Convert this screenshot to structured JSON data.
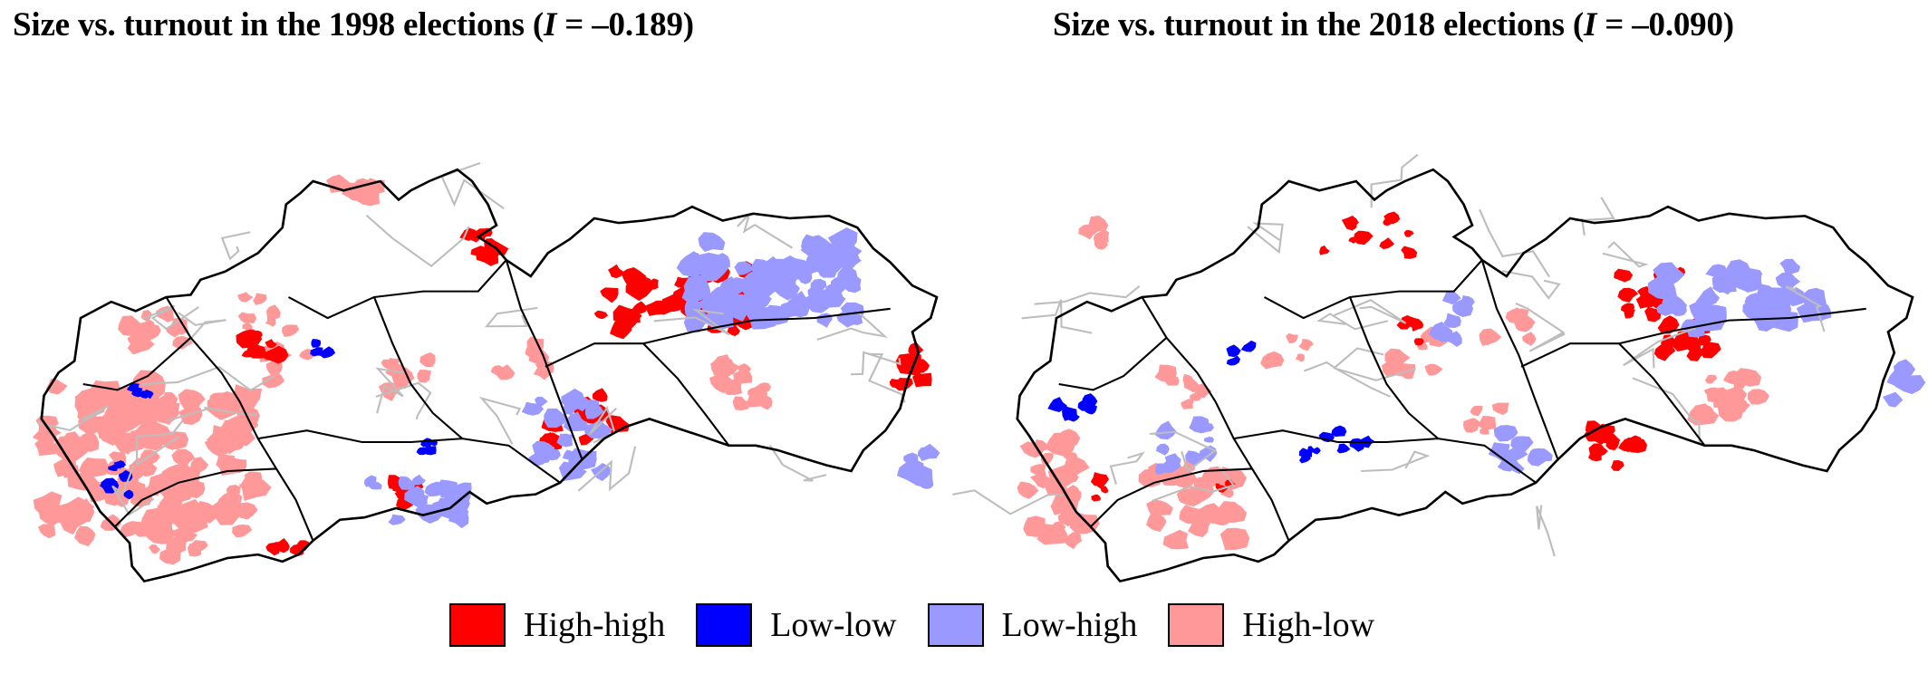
{
  "maps": [
    {
      "title_prefix": "Size vs. turnout in the 1998 elections (",
      "title_stat": "I",
      "title_suffix": " = –0.189)",
      "moran_i": -0.189
    },
    {
      "title_prefix": "Size vs. turnout in the 2018 elections (",
      "title_stat": "I",
      "title_suffix": " = –0.090)",
      "moran_i": -0.09
    }
  ],
  "legend": [
    {
      "label": "High-high",
      "color": "#ff0000"
    },
    {
      "label": "Low-low",
      "color": "#0000ff"
    },
    {
      "label": "Low-high",
      "color": "#9999ff"
    },
    {
      "label": "High-low",
      "color": "#ff9999"
    }
  ],
  "colors": {
    "border": "#000000",
    "district": "#bdbdbd",
    "background": "#ffffff"
  }
}
